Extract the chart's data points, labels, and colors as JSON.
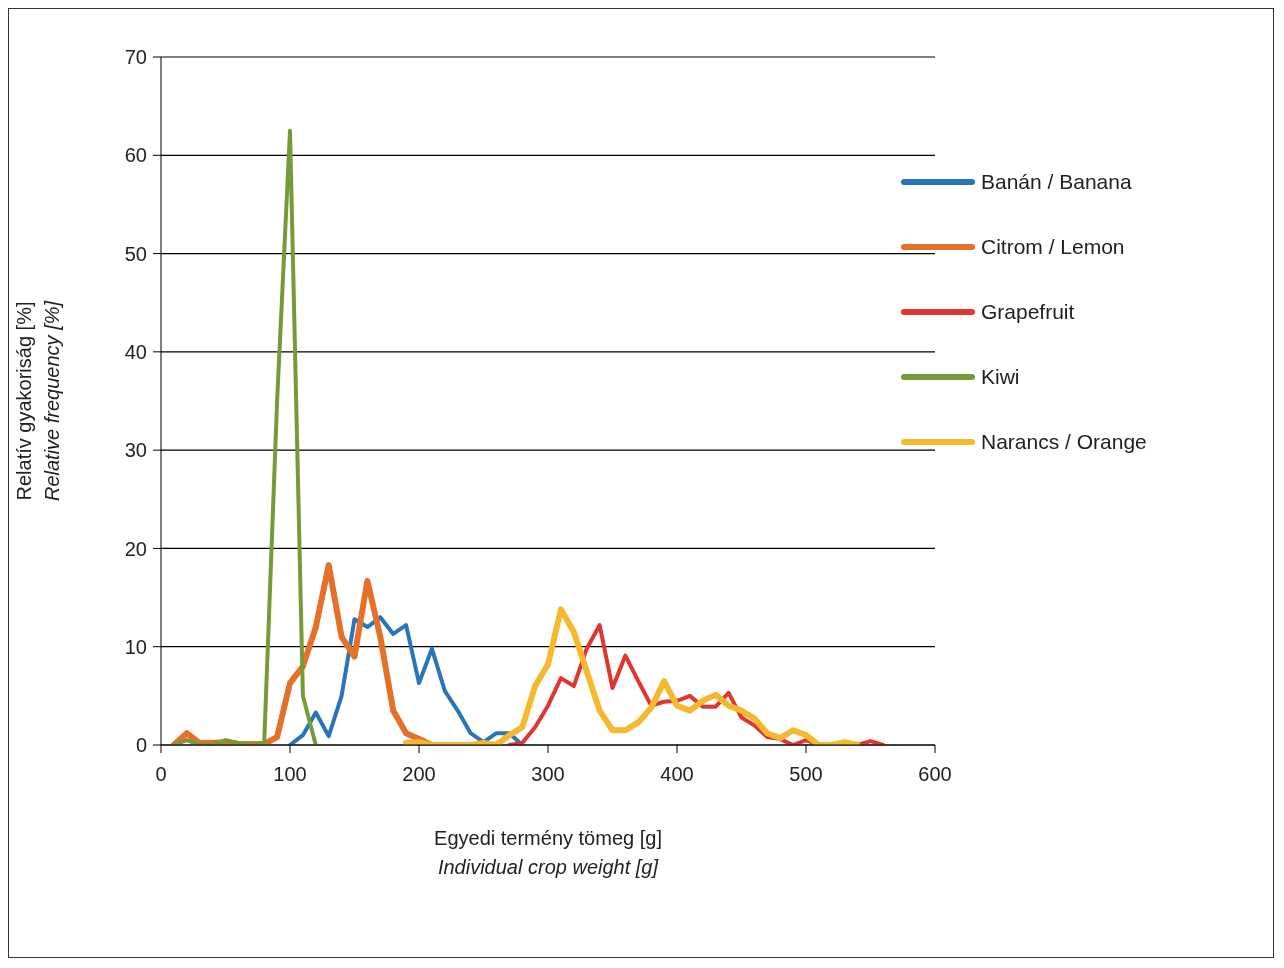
{
  "chart_data": {
    "type": "line",
    "xlabel": "Egyedi termény tömeg [g]\nIndividual crop weight [g]",
    "ylabel": "Relatív gyakoriság [%]\nRelative frequency [%]",
    "xlim": [
      0,
      600
    ],
    "xticks": [
      0,
      100,
      200,
      300,
      400,
      500,
      600
    ],
    "ylim": [
      0,
      70
    ],
    "yticks": [
      0,
      10,
      20,
      30,
      40,
      50,
      60,
      70
    ],
    "grid": "y",
    "legend": "top right",
    "marker": "none",
    "line_style": "solid",
    "series": [
      {
        "name": "Banán / Banana",
        "color": "#2a75b9",
        "x": [
          100,
          110,
          120,
          130,
          140,
          150,
          160,
          170,
          180,
          190,
          200,
          210,
          220,
          230,
          240,
          250,
          260,
          270,
          280
        ],
        "values": [
          0,
          1,
          3.3,
          0.9,
          5,
          12.8,
          12,
          13,
          11.3,
          12.2,
          6.3,
          9.8,
          5.5,
          3.5,
          1.2,
          0.3,
          1.2,
          1.2,
          0
        ]
      },
      {
        "name": "Citrom / Lemon",
        "color": "#e5702a",
        "x": [
          10,
          20,
          30,
          40,
          50,
          60,
          70,
          80,
          90,
          100,
          110,
          120,
          130,
          140,
          150,
          160,
          170,
          180,
          190,
          200,
          210
        ],
        "values": [
          0,
          1.2,
          0.2,
          0.2,
          0.3,
          0.1,
          0.1,
          0.1,
          0.8,
          6.3,
          8,
          12,
          18.3,
          11,
          9,
          16.7,
          11,
          3.5,
          1.2,
          0.6,
          0
        ]
      },
      {
        "name": "Grapefruit",
        "color": "#e03530",
        "x": [
          270,
          280,
          290,
          300,
          310,
          320,
          330,
          340,
          350,
          360,
          370,
          380,
          390,
          400,
          410,
          420,
          430,
          440,
          450,
          460,
          470,
          480,
          490,
          500,
          510,
          520,
          530,
          540,
          550,
          560
        ],
        "values": [
          0,
          0.2,
          1.8,
          4,
          6.8,
          6,
          9.8,
          12.2,
          5.8,
          9.1,
          6.5,
          4,
          4.4,
          4.5,
          5,
          3.9,
          3.9,
          5.3,
          2.8,
          2,
          0.8,
          0.6,
          0,
          0.5,
          0,
          0,
          0,
          0,
          0.4,
          0
        ]
      },
      {
        "name": "Kiwi",
        "color": "#76993a",
        "x": [
          10,
          20,
          30,
          40,
          50,
          60,
          70,
          80,
          90,
          100,
          110,
          120
        ],
        "values": [
          0,
          0.5,
          0,
          0,
          0.5,
          0.2,
          0,
          0.2,
          35,
          62.5,
          5,
          0
        ]
      },
      {
        "name": "Narancs / Orange",
        "color": "#f4b92e",
        "x": [
          190,
          200,
          210,
          220,
          230,
          240,
          250,
          260,
          270,
          280,
          290,
          300,
          310,
          320,
          330,
          340,
          350,
          360,
          370,
          380,
          390,
          400,
          410,
          420,
          430,
          440,
          450,
          460,
          470,
          480,
          490,
          500,
          510,
          520,
          530,
          540
        ],
        "values": [
          0.2,
          0.3,
          0,
          0,
          0,
          0,
          0.2,
          0,
          1,
          1.8,
          6,
          8.2,
          13.8,
          11.5,
          7.5,
          3.5,
          1.5,
          1.5,
          2.3,
          3.8,
          6.5,
          4,
          3.5,
          4.5,
          5.1,
          4,
          3.5,
          2.7,
          1.2,
          0.7,
          1.5,
          1,
          0,
          0,
          0.3,
          0
        ]
      }
    ]
  }
}
